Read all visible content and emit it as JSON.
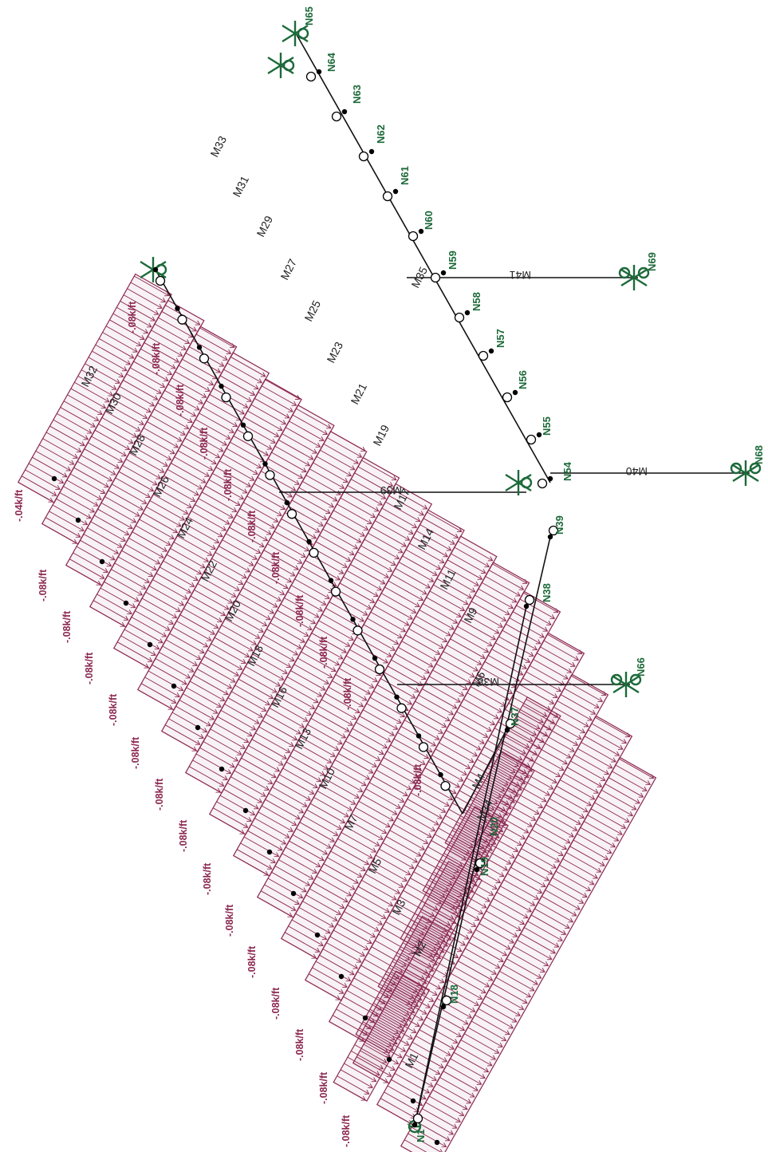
{
  "colors": {
    "member": "#111111",
    "load": "#8c2850",
    "support": "#1d6a3a",
    "node": "#000000"
  },
  "icons": {
    "support": "fixed-support-icon",
    "hinge": "hinge-icon",
    "node": "node-dot-icon"
  },
  "nodes": {
    "n1": "N1",
    "n18": "N18",
    "n19": "N19",
    "n20": "N20",
    "n37": "N37",
    "n38": "N38",
    "n39": "N39",
    "n54": "N54",
    "n55": "N55",
    "n56": "N56",
    "n57": "N57",
    "n58": "N58",
    "n59": "N59",
    "n60": "N60",
    "n61": "N61",
    "n62": "N62",
    "n63": "N63",
    "n64": "N64",
    "n65": "N65",
    "n66": "N66",
    "n68": "N68",
    "n69": "N69"
  },
  "members": {
    "m1": "M1",
    "m2": "M2",
    "m3": "M3",
    "m4": "M4",
    "m5": "M5",
    "m6": "M6",
    "m7": "M7",
    "m9": "M9",
    "m10": "M10",
    "m11": "M11",
    "m13": "M13",
    "m14": "M14",
    "m16": "M16",
    "m17": "M17",
    "m18": "M18",
    "m19": "M19",
    "m20": "M20",
    "m21": "M21",
    "m22": "M22",
    "m23": "M23",
    "m24": "M24",
    "m25": "M25",
    "m26": "M26",
    "m27": "M27",
    "m28": "M28",
    "m29": "M29",
    "m30": "M30",
    "m31": "M31",
    "m32": "M32",
    "m33": "M33",
    "m34": "M34",
    "m35": "M35",
    "m38": "M38",
    "m39": "M39",
    "m40": "M40",
    "m41": "M41"
  },
  "loads": {
    "w1": "-.08k/ft",
    "w2": "-.08k/ft",
    "w3": "-.08k/ft",
    "w4": "-.08k/ft",
    "w5": "-.08k/ft",
    "w6": "-.08k/ft",
    "w7": "-.08k/ft",
    "w8": "-.08k/ft",
    "w9": "-.08k/ft",
    "w10": "-.08k/ft",
    "w11": "-.08k/ft",
    "w12": "-.08k/ft",
    "w13": "-.08k/ft",
    "w14": "-.04k/ft",
    "w15": "-.08k/ft",
    "w16": "-.08k/ft",
    "w17": "-.08k/ft",
    "w18": "-.08k/ft",
    "w19": "-.08k/ft",
    "w20": "-.08k/ft",
    "w21": "-.08k/ft",
    "w22": "-.08k/ft",
    "w23": "-.08k/ft",
    "w24": "-.08k/ft",
    "w25": "-.08k/ft",
    "w26": "-.08k/ft"
  }
}
